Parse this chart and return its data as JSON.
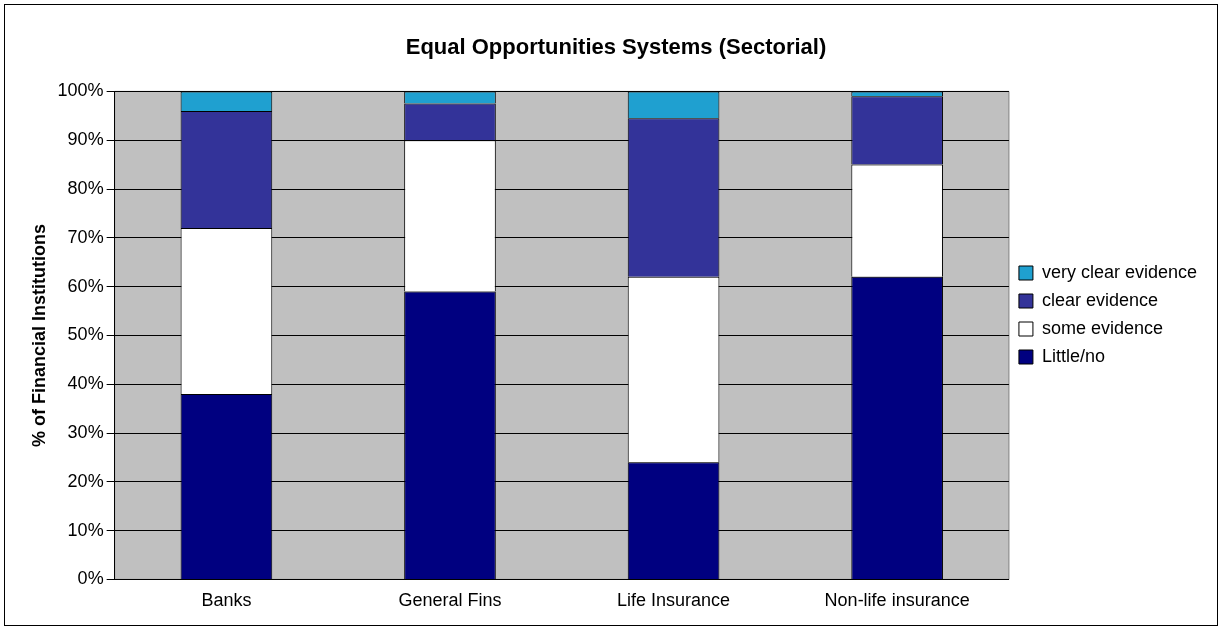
{
  "chart_data": {
    "type": "bar",
    "title": "Equal Opportunities Systems (Sectorial)",
    "ylabel": "% of Financial Institutions",
    "categories": [
      "Banks",
      "General Fins",
      "Life Insurance",
      "Non-life insurance"
    ],
    "stacked": true,
    "ylim": [
      0,
      100
    ],
    "yticks": [
      {
        "value": 0,
        "label": "0%"
      },
      {
        "value": 10,
        "label": "10%"
      },
      {
        "value": 20,
        "label": "20%"
      },
      {
        "value": 30,
        "label": "30%"
      },
      {
        "value": 40,
        "label": "40%"
      },
      {
        "value": 50,
        "label": "50%"
      },
      {
        "value": 60,
        "label": "60%"
      },
      {
        "value": 70,
        "label": "70%"
      },
      {
        "value": 80,
        "label": "80%"
      },
      {
        "value": 90,
        "label": "90%"
      },
      {
        "value": 100,
        "label": "100%"
      }
    ],
    "grid": "y",
    "legend": "right",
    "series": [
      {
        "name": "Little/no",
        "color": "#000080",
        "values": [
          38,
          59,
          24,
          62
        ]
      },
      {
        "name": "some evidence",
        "color": "#ffffff",
        "values": [
          34,
          31,
          38,
          23
        ]
      },
      {
        "name": "clear evidence",
        "color": "#333399",
        "values": [
          24,
          7.5,
          32.5,
          14
        ]
      },
      {
        "name": "very clear evidence",
        "color": "#1fa0d0",
        "values": [
          4,
          2.5,
          5.5,
          1
        ]
      }
    ]
  }
}
